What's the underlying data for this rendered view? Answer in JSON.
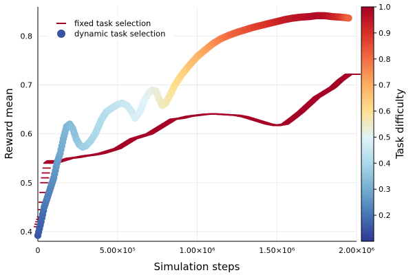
{
  "chart_data": {
    "type": "scatter",
    "xlabel": "Simulation steps",
    "ylabel": "Reward mean",
    "xlim": [
      0,
      2000000
    ],
    "ylim": [
      0.38,
      0.86
    ],
    "x_ticks": [
      {
        "value": 0,
        "label": "0"
      },
      {
        "value": 500000,
        "label": "5.00×10⁵"
      },
      {
        "value": 1000000,
        "label": "1.00×10⁶"
      },
      {
        "value": 1500000,
        "label": "1.50×10⁶"
      },
      {
        "value": 2000000,
        "label": "2.00×10⁶"
      }
    ],
    "y_ticks": [
      {
        "value": 0.4,
        "label": "0.4"
      },
      {
        "value": 0.5,
        "label": "0.5"
      },
      {
        "value": 0.6,
        "label": "0.6"
      },
      {
        "value": 0.7,
        "label": "0.7"
      },
      {
        "value": 0.8,
        "label": "0.8"
      }
    ],
    "grid": true,
    "legend_position": "top-left",
    "colorbar": {
      "label": "Task difficulty",
      "range": [
        0.1,
        1.0
      ],
      "ticks": [
        {
          "value": 0.2,
          "label": "0.2"
        },
        {
          "value": 0.3,
          "label": "0.3"
        },
        {
          "value": 0.4,
          "label": "0.4"
        },
        {
          "value": 0.5,
          "label": "0.5"
        },
        {
          "value": 0.6,
          "label": "0.6"
        },
        {
          "value": 0.7,
          "label": "0.7"
        },
        {
          "value": 0.8,
          "label": "0.8"
        },
        {
          "value": 0.9,
          "label": "0.9"
        },
        {
          "value": 1.0,
          "label": "1.0"
        }
      ],
      "colormap": "RdYlBu_r",
      "stops": [
        "#313695",
        "#4575b4",
        "#74add1",
        "#abd9e9",
        "#e0f3f8",
        "#fee090",
        "#fdae61",
        "#f46d43",
        "#d73027",
        "#a50026"
      ]
    },
    "series": [
      {
        "name": "fixed task selection",
        "marker": "hline",
        "color": "#a50026",
        "points": [
          [
            0,
            0.41
          ],
          [
            20000,
            0.43
          ],
          [
            30000,
            0.46
          ],
          [
            40000,
            0.5
          ],
          [
            50000,
            0.52
          ],
          [
            60000,
            0.54
          ],
          [
            80000,
            0.545
          ],
          [
            100000,
            0.54
          ],
          [
            150000,
            0.545
          ],
          [
            200000,
            0.55
          ],
          [
            250000,
            0.552
          ],
          [
            300000,
            0.555
          ],
          [
            350000,
            0.557
          ],
          [
            400000,
            0.56
          ],
          [
            450000,
            0.565
          ],
          [
            500000,
            0.57
          ],
          [
            550000,
            0.58
          ],
          [
            600000,
            0.59
          ],
          [
            650000,
            0.595
          ],
          [
            700000,
            0.6
          ],
          [
            750000,
            0.61
          ],
          [
            800000,
            0.62
          ],
          [
            850000,
            0.63
          ],
          [
            900000,
            0.632
          ],
          [
            950000,
            0.636
          ],
          [
            1000000,
            0.638
          ],
          [
            1050000,
            0.64
          ],
          [
            1100000,
            0.641
          ],
          [
            1150000,
            0.64
          ],
          [
            1200000,
            0.639
          ],
          [
            1250000,
            0.638
          ],
          [
            1300000,
            0.635
          ],
          [
            1350000,
            0.63
          ],
          [
            1400000,
            0.625
          ],
          [
            1450000,
            0.62
          ],
          [
            1500000,
            0.617
          ],
          [
            1550000,
            0.62
          ],
          [
            1600000,
            0.632
          ],
          [
            1650000,
            0.645
          ],
          [
            1700000,
            0.66
          ],
          [
            1750000,
            0.675
          ],
          [
            1800000,
            0.685
          ],
          [
            1850000,
            0.695
          ],
          [
            1900000,
            0.71
          ],
          [
            1950000,
            0.722
          ],
          [
            2000000,
            0.722
          ]
        ]
      },
      {
        "name": "dynamic task selection",
        "marker": "circle",
        "color_by": "difficulty",
        "points": [
          [
            0,
            0.392,
            0.15
          ],
          [
            20000,
            0.42,
            0.17
          ],
          [
            40000,
            0.45,
            0.2
          ],
          [
            60000,
            0.47,
            0.22
          ],
          [
            80000,
            0.49,
            0.23
          ],
          [
            100000,
            0.51,
            0.25
          ],
          [
            120000,
            0.54,
            0.27
          ],
          [
            140000,
            0.56,
            0.29
          ],
          [
            160000,
            0.59,
            0.31
          ],
          [
            180000,
            0.615,
            0.32
          ],
          [
            200000,
            0.62,
            0.33
          ],
          [
            220000,
            0.61,
            0.34
          ],
          [
            240000,
            0.59,
            0.35
          ],
          [
            260000,
            0.578,
            0.36
          ],
          [
            280000,
            0.573,
            0.37
          ],
          [
            300000,
            0.575,
            0.38
          ],
          [
            330000,
            0.585,
            0.39
          ],
          [
            360000,
            0.6,
            0.4
          ],
          [
            400000,
            0.63,
            0.41
          ],
          [
            430000,
            0.645,
            0.42
          ],
          [
            460000,
            0.652,
            0.43
          ],
          [
            500000,
            0.66,
            0.44
          ],
          [
            530000,
            0.663,
            0.45
          ],
          [
            560000,
            0.658,
            0.46
          ],
          [
            590000,
            0.645,
            0.47
          ],
          [
            610000,
            0.632,
            0.48
          ],
          [
            640000,
            0.645,
            0.49
          ],
          [
            670000,
            0.67,
            0.5
          ],
          [
            700000,
            0.685,
            0.51
          ],
          [
            720000,
            0.69,
            0.52
          ],
          [
            740000,
            0.688,
            0.53
          ],
          [
            760000,
            0.672,
            0.54
          ],
          [
            780000,
            0.658,
            0.55
          ],
          [
            800000,
            0.662,
            0.56
          ],
          [
            830000,
            0.68,
            0.58
          ],
          [
            860000,
            0.7,
            0.6
          ],
          [
            900000,
            0.72,
            0.62
          ],
          [
            950000,
            0.74,
            0.65
          ],
          [
            1000000,
            0.758,
            0.68
          ],
          [
            1050000,
            0.772,
            0.71
          ],
          [
            1100000,
            0.785,
            0.74
          ],
          [
            1150000,
            0.795,
            0.77
          ],
          [
            1200000,
            0.802,
            0.8
          ],
          [
            1250000,
            0.808,
            0.82
          ],
          [
            1300000,
            0.813,
            0.84
          ],
          [
            1350000,
            0.818,
            0.86
          ],
          [
            1400000,
            0.822,
            0.88
          ],
          [
            1450000,
            0.826,
            0.9
          ],
          [
            1500000,
            0.83,
            0.92
          ],
          [
            1550000,
            0.834,
            0.94
          ],
          [
            1600000,
            0.837,
            0.95
          ],
          [
            1650000,
            0.839,
            0.96
          ],
          [
            1700000,
            0.84,
            0.97
          ],
          [
            1750000,
            0.842,
            0.98
          ],
          [
            1800000,
            0.842,
            0.97
          ],
          [
            1850000,
            0.84,
            0.94
          ],
          [
            1900000,
            0.839,
            0.9
          ],
          [
            1930000,
            0.838,
            0.85
          ],
          [
            1950000,
            0.837,
            0.82
          ]
        ]
      }
    ]
  }
}
